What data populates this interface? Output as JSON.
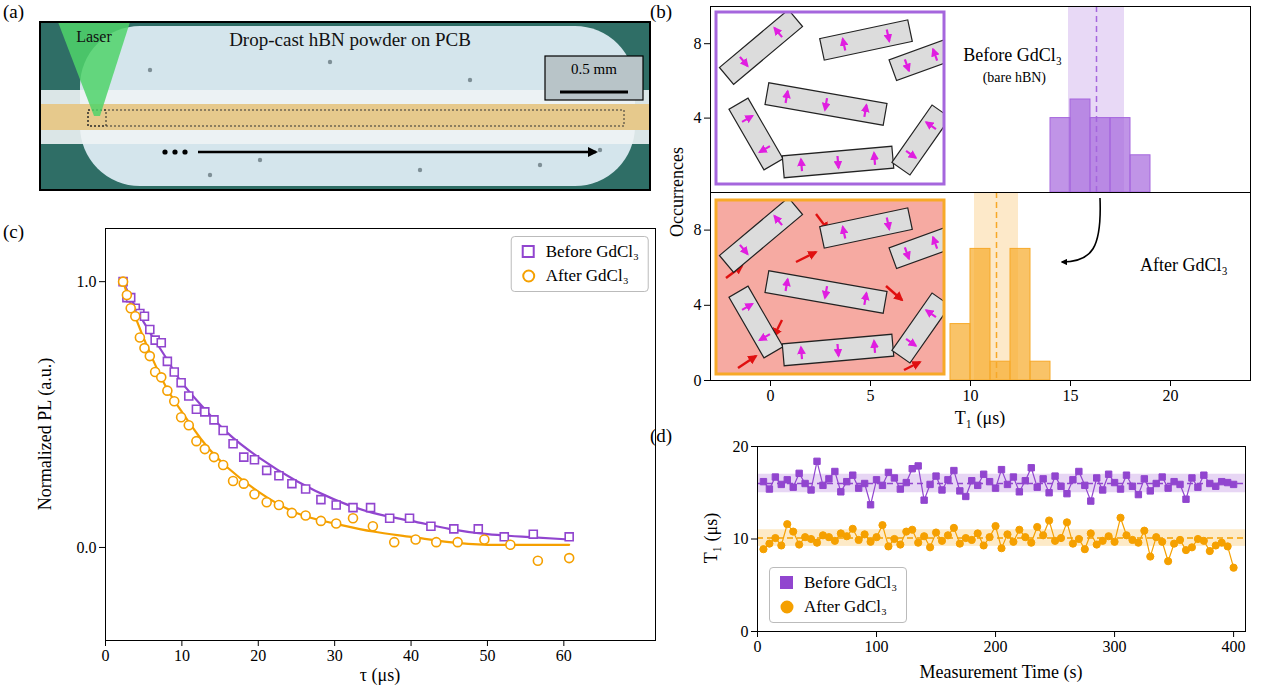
{
  "chart_data": [
    {
      "type": "image",
      "panel": "(a)",
      "title": "Drop-cast hBN powder on PCB",
      "annotations": [
        "Laser"
      ],
      "scale_bar": "0.5 mm"
    },
    {
      "type": "histogram",
      "panel": "(b)",
      "ylabel": "Occurrences",
      "annotations": [
        "Before GdCl₃",
        "(bare hBN)"
      ],
      "tick_labels": "y",
      "xlim": [
        -3,
        24
      ],
      "ylim": [
        0,
        10
      ],
      "yticks": [
        4,
        8
      ],
      "bins": [
        14,
        15,
        16,
        17,
        18,
        19
      ],
      "values": [
        4,
        5,
        4,
        4,
        2
      ],
      "color": "#a566dd",
      "mean": 16.3,
      "band": [
        14.9,
        17.7
      ]
    },
    {
      "type": "histogram",
      "xlabel": "T₁ (μs)",
      "annotations": [
        "After GdCl₃"
      ],
      "xlim": [
        -3,
        24
      ],
      "xticks": [
        0,
        5,
        10,
        15,
        20
      ],
      "ylim": [
        0,
        10
      ],
      "yticks": [
        0,
        4,
        8
      ],
      "bins": [
        9,
        10,
        11,
        12,
        13,
        14
      ],
      "values": [
        3,
        7,
        1,
        7,
        1
      ],
      "color": "#f7a928",
      "mean": 11.3,
      "band": [
        10.2,
        12.4
      ]
    },
    {
      "type": "scatter",
      "panel": "(c)",
      "xlabel": "τ (μs)",
      "ylabel": "Normalized PL (a.u.)",
      "legend": "upper right",
      "xlim": [
        0,
        72
      ],
      "xticks": [
        0,
        10,
        20,
        30,
        40,
        50,
        60
      ],
      "ylim": [
        -0.35,
        1.2
      ],
      "yticks": [
        {
          "value": 0,
          "label": "0.0"
        },
        {
          "value": 1,
          "label": "1.0"
        }
      ],
      "series": [
        {
          "name": "Before GdCl₃",
          "color": "#9145cf",
          "marker": "square_open",
          "x": [
            2.3,
            2.8,
            3.3,
            3.9,
            4.5,
            5.1,
            5.8,
            6.5,
            7.3,
            8.1,
            9.0,
            9.9,
            10.9,
            11.9,
            13.0,
            14.2,
            15.4,
            16.7,
            18.1,
            19.5,
            21.1,
            22.7,
            24.4,
            26.2,
            28.2,
            30.2,
            32.4,
            34.7,
            37.2,
            39.8,
            42.6,
            45.6,
            48.8,
            52.2,
            56.0,
            60.7
          ],
          "values": [
            1.0,
            0.94,
            0.94,
            0.9,
            0.88,
            0.87,
            0.82,
            0.78,
            0.77,
            0.7,
            0.66,
            0.62,
            0.57,
            0.52,
            0.51,
            0.48,
            0.44,
            0.39,
            0.34,
            0.33,
            0.29,
            0.27,
            0.24,
            0.22,
            0.18,
            0.16,
            0.15,
            0.15,
            0.11,
            0.11,
            0.08,
            0.07,
            0.07,
            0.04,
            0.05,
            0.04
          ],
          "fit": {
            "x": [
              2.3,
              4,
              6,
              8,
              10,
              13,
              16,
              20,
              25,
              30,
              35,
              40,
              45,
              50,
              55,
              60.7
            ],
            "values": [
              1.0,
              0.9,
              0.8,
              0.71,
              0.62,
              0.52,
              0.43,
              0.34,
              0.25,
              0.18,
              0.13,
              0.1,
              0.07,
              0.05,
              0.04,
              0.03
            ]
          }
        },
        {
          "name": "After GdCl₃",
          "color": "#f5a000",
          "marker": "circle_open",
          "x": [
            2.3,
            2.8,
            3.3,
            3.9,
            4.5,
            5.1,
            5.8,
            6.5,
            7.3,
            8.1,
            9.0,
            9.9,
            10.9,
            11.9,
            13.0,
            14.2,
            15.4,
            16.7,
            18.1,
            19.5,
            21.1,
            22.7,
            24.4,
            26.2,
            28.2,
            30.2,
            32.4,
            35.0,
            37.8,
            40.6,
            43.3,
            46.1,
            49.6,
            53.0,
            56.6,
            60.7
          ],
          "values": [
            1.0,
            0.95,
            0.9,
            0.87,
            0.79,
            0.75,
            0.72,
            0.66,
            0.64,
            0.59,
            0.55,
            0.49,
            0.46,
            0.4,
            0.37,
            0.34,
            0.31,
            0.25,
            0.24,
            0.2,
            0.17,
            0.16,
            0.13,
            0.12,
            0.1,
            0.09,
            0.11,
            0.08,
            0.02,
            0.03,
            0.02,
            0.02,
            0.03,
            0.01,
            -0.05,
            -0.04
          ],
          "fit": {
            "x": [
              2.3,
              4,
              6,
              8,
              10,
              13,
              16,
              20,
              25,
              30,
              35,
              40,
              45,
              50,
              55,
              60.7
            ],
            "values": [
              1.0,
              0.86,
              0.72,
              0.6,
              0.51,
              0.39,
              0.3,
              0.21,
              0.13,
              0.09,
              0.06,
              0.04,
              0.02,
              0.01,
              0.01,
              0.01
            ]
          }
        }
      ]
    },
    {
      "type": "scatter",
      "panel": "(d)",
      "xlabel": "Measurement Time (s)",
      "ylabel": "T₁ (μs)",
      "legend": "lower left",
      "xlim": [
        0,
        410
      ],
      "xticks": [
        0,
        100,
        200,
        300,
        400
      ],
      "ylim": [
        0,
        20
      ],
      "yticks": [
        0,
        10,
        20
      ],
      "x": [
        5,
        10,
        15,
        20,
        25,
        30,
        35,
        40,
        45,
        50,
        55,
        60,
        65,
        70,
        75,
        80,
        85,
        90,
        95,
        100,
        105,
        110,
        115,
        120,
        125,
        130,
        135,
        140,
        145,
        150,
        155,
        160,
        165,
        170,
        175,
        180,
        185,
        190,
        195,
        200,
        205,
        210,
        215,
        220,
        225,
        230,
        235,
        240,
        245,
        250,
        255,
        260,
        265,
        270,
        275,
        280,
        285,
        290,
        295,
        300,
        305,
        310,
        315,
        320,
        325,
        330,
        335,
        340,
        345,
        350,
        355,
        360,
        365,
        370,
        375,
        380,
        385,
        390,
        395,
        400
      ],
      "series": [
        {
          "name": "Before GdCl₃",
          "color": "#9145cf",
          "type": "line",
          "marker": "square",
          "mean": 16.0,
          "band": [
            15.0,
            17.0
          ],
          "values": [
            16.2,
            15.4,
            16.7,
            15.9,
            16.4,
            15.6,
            17.1,
            16.0,
            15.3,
            18.4,
            15.8,
            16.5,
            17.3,
            15.1,
            16.2,
            16.9,
            15.5,
            16.0,
            13.7,
            16.4,
            15.8,
            17.2,
            16.6,
            15.4,
            16.1,
            17.6,
            17.9,
            14.2,
            15.9,
            16.8,
            15.3,
            16.4,
            17.4,
            15.2,
            14.6,
            16.3,
            15.8,
            17.0,
            16.2,
            15.5,
            17.5,
            15.9,
            16.7,
            15.1,
            16.3,
            17.7,
            15.6,
            16.5,
            15.0,
            16.8,
            15.7,
            14.9,
            16.4,
            17.3,
            15.8,
            14.1,
            16.6,
            15.3,
            17.0,
            16.1,
            15.4,
            16.9,
            15.7,
            14.8,
            16.5,
            15.2,
            16.0,
            16.7,
            15.5,
            16.2,
            15.9,
            14.3,
            16.6,
            15.6,
            16.9,
            16.0,
            15.7,
            16.2,
            16.1,
            15.9
          ]
        },
        {
          "name": "After GdCl₃",
          "color": "#f5a000",
          "type": "line",
          "marker": "circle",
          "mean": 10.1,
          "band": [
            9.2,
            11.0
          ],
          "values": [
            8.9,
            9.5,
            10.1,
            9.3,
            11.6,
            10.8,
            9.4,
            10.2,
            10.0,
            9.6,
            10.4,
            10.2,
            9.8,
            10.6,
            10.3,
            11.1,
            9.9,
            10.5,
            9.7,
            10.2,
            11.5,
            9.2,
            10.0,
            9.4,
            10.8,
            11.0,
            9.6,
            10.3,
            9.1,
            10.7,
            9.8,
            10.4,
            11.2,
            9.5,
            10.1,
            9.9,
            10.6,
            9.3,
            10.2,
            11.4,
            9.0,
            10.5,
            9.7,
            11.0,
            10.2,
            9.6,
            11.3,
            10.4,
            12.0,
            9.8,
            10.1,
            11.8,
            9.5,
            10.0,
            8.9,
            10.6,
            9.4,
            9.8,
            10.3,
            9.7,
            12.3,
            10.4,
            9.9,
            9.6,
            10.9,
            8.1,
            10.2,
            9.7,
            7.6,
            9.5,
            9.9,
            8.8,
            9.1,
            10.0,
            9.8,
            8.7,
            9.3,
            9.6,
            9.2,
            6.9
          ]
        }
      ]
    }
  ]
}
